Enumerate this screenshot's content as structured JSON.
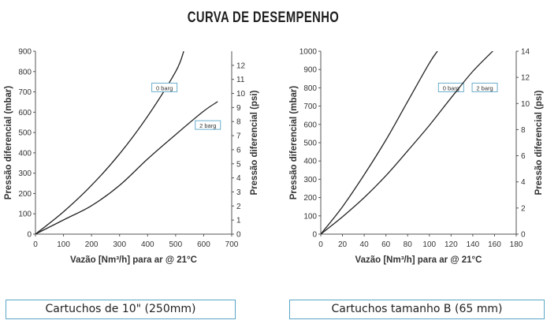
{
  "page_title": "CURVA DE DESEMPENHO",
  "chart_data": [
    {
      "type": "line",
      "caption": "Cartuchos de 10\" (250mm)",
      "xlabel": "Vazão [Nm³/h] para ar @ 21°C",
      "ylabel_left": "Pressão diferencial (mbar)",
      "ylabel_right": "Pressão diferencial (psi)",
      "xlim": [
        0,
        700
      ],
      "ylim_left": [
        0,
        900
      ],
      "ylim_right": [
        0,
        13
      ],
      "x_ticks": [
        "0",
        "100",
        "200",
        "300",
        "400",
        "500",
        "600",
        "700"
      ],
      "y_ticks_left": [
        "0",
        "100",
        "200",
        "300",
        "400",
        "500",
        "600",
        "700",
        "800",
        "900"
      ],
      "y_ticks_right": [
        "0",
        "1",
        "2",
        "3",
        "4",
        "5",
        "6",
        "7",
        "8",
        "9",
        "10",
        "11",
        "12"
      ],
      "series": [
        {
          "name": "0 barg",
          "label_at": {
            "x": 460,
            "y": 720
          },
          "points": [
            [
              0,
              0
            ],
            [
              100,
              110
            ],
            [
              200,
              240
            ],
            [
              300,
              395
            ],
            [
              400,
              580
            ],
            [
              500,
              800
            ],
            [
              530,
              905
            ]
          ]
        },
        {
          "name": "2 barg",
          "label_at": {
            "x": 615,
            "y": 535
          },
          "points": [
            [
              0,
              0
            ],
            [
              100,
              70
            ],
            [
              200,
              140
            ],
            [
              300,
              240
            ],
            [
              400,
              370
            ],
            [
              500,
              490
            ],
            [
              600,
              605
            ],
            [
              650,
              652
            ]
          ]
        }
      ]
    },
    {
      "type": "line",
      "caption": "Cartuchos tamanho B (65 mm)",
      "xlabel": "Vazão [Nm³/h] para ar @ 21°C",
      "ylabel_left": "Pressão diferencial (mbar)",
      "ylabel_right": "Pressão diferencial (psi)",
      "xlim": [
        0,
        180
      ],
      "ylim_left": [
        0,
        1000
      ],
      "ylim_right": [
        0,
        14
      ],
      "x_ticks": [
        "0",
        "20",
        "40",
        "60",
        "80",
        "100",
        "120",
        "140",
        "160",
        "180"
      ],
      "y_ticks_left": [
        "0",
        "100",
        "200",
        "300",
        "400",
        "500",
        "600",
        "700",
        "800",
        "900",
        "1000"
      ],
      "y_ticks_right": [
        "0",
        "2",
        "4",
        "6",
        "8",
        "10",
        "12",
        "14"
      ],
      "series": [
        {
          "name": "0 barg",
          "label_at": {
            "x": 120,
            "y": 800
          },
          "points": [
            [
              0,
              0
            ],
            [
              20,
              150
            ],
            [
              40,
              325
            ],
            [
              60,
              515
            ],
            [
              80,
              725
            ],
            [
              100,
              935
            ],
            [
              108,
              1005
            ]
          ]
        },
        {
          "name": "2 barg",
          "label_at": {
            "x": 151,
            "y": 800
          },
          "points": [
            [
              0,
              0
            ],
            [
              20,
              95
            ],
            [
              40,
              200
            ],
            [
              60,
              320
            ],
            [
              80,
              455
            ],
            [
              100,
              595
            ],
            [
              120,
              745
            ],
            [
              140,
              890
            ],
            [
              160,
              1010
            ]
          ]
        }
      ]
    }
  ]
}
